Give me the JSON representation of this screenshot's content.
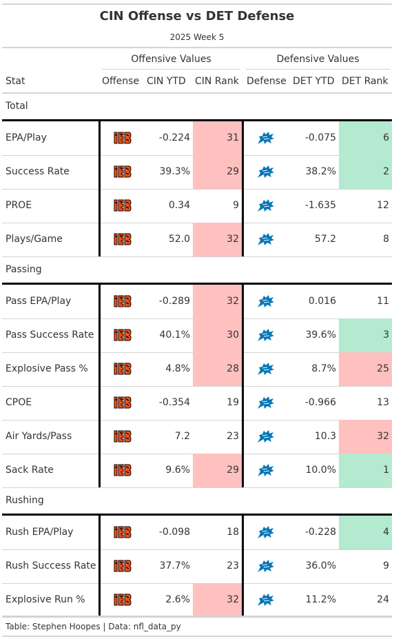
{
  "title": "CIN Offense vs DET Defense",
  "subtitle": "2025 Week 5",
  "spanners": {
    "offense": "Offensive Values",
    "defense": "Defensive Values"
  },
  "columns": {
    "stat": "Stat",
    "offense": "Offense",
    "off_ytd": "CIN YTD",
    "off_rank": "CIN Rank",
    "defense": "Defense",
    "def_ytd": "DET YTD",
    "def_rank": "DET Rank"
  },
  "icons": {
    "offense_logo": "bengals-logo-icon",
    "defense_logo": "lions-logo-icon"
  },
  "colors": {
    "bad_rank": "#ffc0c0",
    "good_rank": "#b3ead0",
    "bengals_orange": "#fb4f14",
    "bengals_black": "#000000",
    "lions_blue": "#0076b6"
  },
  "source": "Table: Stephen Hoopes | Data: nfl_data_py",
  "chart_data": {
    "type": "table",
    "title": "CIN Offense vs DET Defense",
    "subtitle": "2025 Week 5",
    "columns": [
      "Stat",
      "Offense",
      "CIN YTD",
      "CIN Rank",
      "Defense",
      "DET YTD",
      "DET Rank"
    ],
    "groups": [
      {
        "label": "Total",
        "rows": [
          {
            "stat": "EPA/Play",
            "off_ytd": "-0.224",
            "off_rank": "31",
            "off_rank_hl": "bad",
            "def_ytd": "-0.075",
            "def_rank": "6",
            "def_rank_hl": "good"
          },
          {
            "stat": "Success Rate",
            "off_ytd": "39.3%",
            "off_rank": "29",
            "off_rank_hl": "bad",
            "def_ytd": "38.2%",
            "def_rank": "2",
            "def_rank_hl": "good"
          },
          {
            "stat": "PROE",
            "off_ytd": "0.34",
            "off_rank": "9",
            "off_rank_hl": "",
            "def_ytd": "-1.635",
            "def_rank": "12",
            "def_rank_hl": ""
          },
          {
            "stat": "Plays/Game",
            "off_ytd": "52.0",
            "off_rank": "32",
            "off_rank_hl": "bad",
            "def_ytd": "57.2",
            "def_rank": "8",
            "def_rank_hl": ""
          }
        ]
      },
      {
        "label": "Passing",
        "rows": [
          {
            "stat": "Pass EPA/Play",
            "off_ytd": "-0.289",
            "off_rank": "32",
            "off_rank_hl": "bad",
            "def_ytd": "0.016",
            "def_rank": "11",
            "def_rank_hl": ""
          },
          {
            "stat": "Pass Success Rate",
            "off_ytd": "40.1%",
            "off_rank": "30",
            "off_rank_hl": "bad",
            "def_ytd": "39.6%",
            "def_rank": "3",
            "def_rank_hl": "good"
          },
          {
            "stat": "Explosive Pass %",
            "off_ytd": "4.8%",
            "off_rank": "28",
            "off_rank_hl": "bad",
            "def_ytd": "8.7%",
            "def_rank": "25",
            "def_rank_hl": "bad"
          },
          {
            "stat": "CPOE",
            "off_ytd": "-0.354",
            "off_rank": "19",
            "off_rank_hl": "",
            "def_ytd": "-0.966",
            "def_rank": "13",
            "def_rank_hl": ""
          },
          {
            "stat": "Air Yards/Pass",
            "off_ytd": "7.2",
            "off_rank": "23",
            "off_rank_hl": "",
            "def_ytd": "10.3",
            "def_rank": "32",
            "def_rank_hl": "bad"
          },
          {
            "stat": "Sack Rate",
            "off_ytd": "9.6%",
            "off_rank": "29",
            "off_rank_hl": "bad",
            "def_ytd": "10.0%",
            "def_rank": "1",
            "def_rank_hl": "good"
          }
        ]
      },
      {
        "label": "Rushing",
        "rows": [
          {
            "stat": "Rush EPA/Play",
            "off_ytd": "-0.098",
            "off_rank": "18",
            "off_rank_hl": "",
            "def_ytd": "-0.228",
            "def_rank": "4",
            "def_rank_hl": "good"
          },
          {
            "stat": "Rush Success Rate",
            "off_ytd": "37.7%",
            "off_rank": "23",
            "off_rank_hl": "",
            "def_ytd": "36.0%",
            "def_rank": "9",
            "def_rank_hl": ""
          },
          {
            "stat": "Explosive Run %",
            "off_ytd": "2.6%",
            "off_rank": "32",
            "off_rank_hl": "bad",
            "def_ytd": "11.2%",
            "def_rank": "24",
            "def_rank_hl": ""
          }
        ]
      }
    ]
  }
}
